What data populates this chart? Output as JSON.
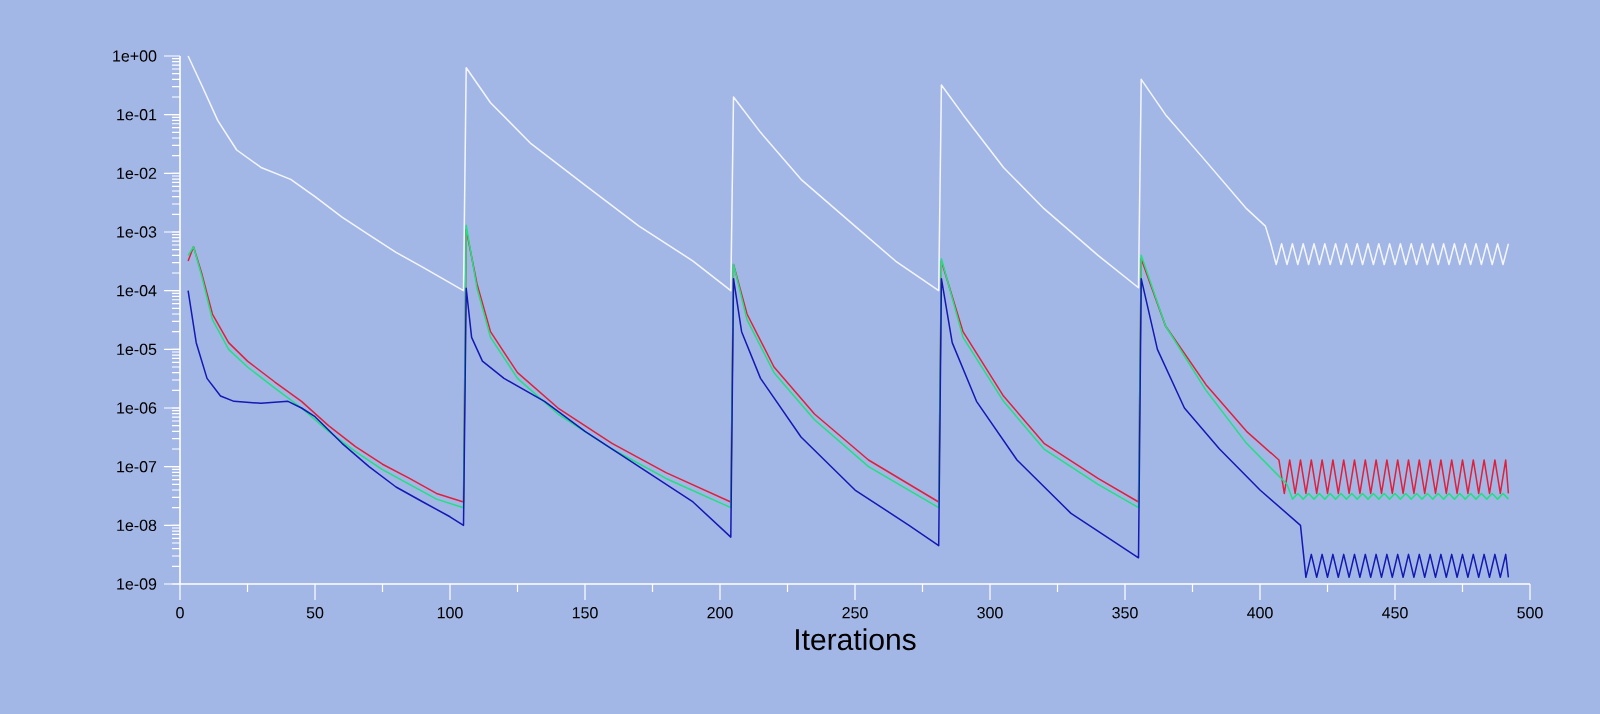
{
  "chart_data": {
    "type": "line",
    "xlabel": "Iterations",
    "log": "y",
    "marker": "none",
    "line_style": "solid",
    "xlim": [
      0,
      500
    ],
    "xticks": [
      0,
      50,
      100,
      150,
      200,
      250,
      300,
      350,
      400,
      450,
      500
    ],
    "ylim": [
      1e-09,
      1
    ],
    "yticks": [
      {
        "value": 1e-09,
        "label": "1e-09"
      },
      {
        "value": 1e-08,
        "label": "1e-08"
      },
      {
        "value": 1e-07,
        "label": "1e-07"
      },
      {
        "value": 1e-06,
        "label": "1e-06"
      },
      {
        "value": 1e-05,
        "label": "1e-05"
      },
      {
        "value": 0.0001,
        "label": "1e-04"
      },
      {
        "value": 0.001,
        "label": "1e-03"
      },
      {
        "value": 0.01,
        "label": "1e-02"
      },
      {
        "value": 0.1,
        "label": "1e-01"
      },
      {
        "value": 1,
        "label": "1e+00"
      }
    ],
    "series": [
      {
        "color": "#f4f6fc",
        "x": [
          3,
          8,
          14,
          21,
          30,
          41,
          50,
          60,
          70,
          80,
          90,
          105,
          106,
          115,
          130,
          150,
          170,
          190,
          204,
          205,
          215,
          230,
          250,
          265,
          281,
          282,
          290,
          305,
          320,
          340,
          355,
          356,
          365,
          380,
          395,
          402,
          404,
          406,
          408,
          410,
          412,
          414,
          416,
          418,
          420,
          422,
          424,
          426,
          428,
          430,
          432,
          434,
          436,
          438,
          440,
          442,
          444,
          446,
          448,
          450,
          452,
          454,
          456,
          458,
          460,
          462,
          464,
          466,
          468,
          470,
          472,
          474,
          476,
          478,
          480,
          482,
          484,
          486,
          488,
          490,
          492
        ],
        "values": [
          1,
          0.32,
          0.079,
          0.025,
          0.0126,
          0.0079,
          0.004,
          0.0018,
          0.00089,
          0.00045,
          0.00025,
          0.0001,
          0.63,
          0.16,
          0.032,
          0.0063,
          0.00126,
          0.00032,
          0.0001,
          0.2,
          0.05,
          0.0079,
          0.00126,
          0.00032,
          0.0001,
          0.32,
          0.1,
          0.0126,
          0.0025,
          0.0004,
          0.000112,
          0.4,
          0.1,
          0.016,
          0.0025,
          0.00126,
          0.00063,
          0.00028,
          0.00063,
          0.00028,
          0.00063,
          0.00028,
          0.00063,
          0.00028,
          0.00063,
          0.00028,
          0.00063,
          0.00028,
          0.00063,
          0.00028,
          0.00063,
          0.00028,
          0.00063,
          0.00028,
          0.00063,
          0.00028,
          0.00063,
          0.00028,
          0.00063,
          0.00028,
          0.00063,
          0.00028,
          0.00063,
          0.00028,
          0.00063,
          0.00028,
          0.00063,
          0.00028,
          0.00063,
          0.00028,
          0.00063,
          0.00028,
          0.00063,
          0.00028,
          0.00063,
          0.00028,
          0.00063,
          0.00028,
          0.00063,
          0.00028,
          0.00063
        ]
      },
      {
        "color": "#e0203a",
        "x": [
          3,
          5,
          8,
          12,
          18,
          25,
          35,
          45,
          55,
          65,
          75,
          85,
          95,
          105,
          106,
          110,
          115,
          125,
          140,
          160,
          180,
          204,
          205,
          210,
          220,
          235,
          255,
          281,
          282,
          290,
          305,
          320,
          340,
          355,
          356,
          365,
          380,
          395,
          407,
          409,
          411,
          413,
          415,
          417,
          419,
          421,
          423,
          425,
          427,
          429,
          431,
          433,
          435,
          437,
          439,
          441,
          443,
          445,
          447,
          449,
          451,
          453,
          455,
          457,
          459,
          461,
          463,
          465,
          467,
          469,
          471,
          473,
          475,
          477,
          479,
          481,
          483,
          485,
          487,
          489,
          491,
          492
        ],
        "values": [
          0.00032,
          0.00056,
          0.0002,
          4e-05,
          1.3e-05,
          6.3e-06,
          2.8e-06,
          1.3e-06,
          5e-07,
          2.2e-07,
          1.1e-07,
          6.3e-08,
          3.5e-08,
          2.5e-08,
          0.0011,
          0.00013,
          2e-05,
          4e-06,
          1e-06,
          2.5e-07,
          7.9e-08,
          2.5e-08,
          0.00028,
          4e-05,
          5e-06,
          7.9e-07,
          1.3e-07,
          2.5e-08,
          0.00032,
          2e-05,
          1.6e-06,
          2.5e-07,
          6.3e-08,
          2.5e-08,
          0.00035,
          2.5e-05,
          2.5e-06,
          4e-07,
          1.3e-07,
          3.5e-08,
          1.3e-07,
          3.5e-08,
          1.3e-07,
          3.5e-08,
          1.3e-07,
          3.5e-08,
          1.3e-07,
          3.5e-08,
          1.3e-07,
          3.5e-08,
          1.3e-07,
          3.5e-08,
          1.3e-07,
          3.5e-08,
          1.3e-07,
          3.5e-08,
          1.3e-07,
          3.5e-08,
          1.3e-07,
          3.5e-08,
          1.3e-07,
          3.5e-08,
          1.3e-07,
          3.5e-08,
          1.3e-07,
          3.5e-08,
          1.3e-07,
          3.5e-08,
          1.3e-07,
          3.5e-08,
          1.3e-07,
          3.5e-08,
          1.3e-07,
          3.5e-08,
          1.3e-07,
          3.5e-08,
          1.3e-07,
          3.5e-08,
          1.3e-07,
          3.5e-08,
          1.3e-07,
          3.5e-08
        ]
      },
      {
        "color": "#20e080",
        "x": [
          3,
          5,
          8,
          12,
          18,
          25,
          35,
          45,
          55,
          65,
          75,
          85,
          95,
          105,
          106,
          110,
          115,
          125,
          140,
          160,
          180,
          204,
          205,
          210,
          220,
          235,
          255,
          281,
          282,
          290,
          305,
          320,
          340,
          355,
          356,
          365,
          380,
          395,
          410,
          412,
          414,
          416,
          418,
          420,
          422,
          424,
          426,
          428,
          430,
          432,
          434,
          436,
          438,
          440,
          442,
          444,
          446,
          448,
          450,
          452,
          454,
          456,
          458,
          460,
          462,
          464,
          466,
          468,
          470,
          472,
          474,
          476,
          478,
          480,
          482,
          484,
          486,
          488,
          490,
          492
        ],
        "values": [
          0.0004,
          0.00056,
          0.00018,
          3.2e-05,
          1e-05,
          5e-06,
          2.2e-06,
          1e-06,
          4e-07,
          1.8e-07,
          8.9e-08,
          5e-08,
          2.8e-08,
          2e-08,
          0.0013,
          0.00011,
          1.6e-05,
          3.2e-06,
          7.9e-07,
          2e-07,
          6.3e-08,
          2e-08,
          0.00028,
          3.2e-05,
          4e-06,
          6.3e-07,
          1e-07,
          2e-08,
          0.00035,
          1.6e-05,
          1.3e-06,
          2e-07,
          5e-08,
          2e-08,
          0.0004,
          2.5e-05,
          2e-06,
          2.5e-07,
          5e-08,
          2.8e-08,
          3.5e-08,
          2.8e-08,
          3.5e-08,
          2.8e-08,
          3.5e-08,
          2.8e-08,
          3.5e-08,
          2.8e-08,
          3.5e-08,
          2.8e-08,
          3.5e-08,
          2.8e-08,
          3.5e-08,
          2.8e-08,
          3.5e-08,
          2.8e-08,
          3.5e-08,
          2.8e-08,
          3.5e-08,
          2.8e-08,
          3.5e-08,
          2.8e-08,
          3.5e-08,
          2.8e-08,
          3.5e-08,
          2.8e-08,
          3.5e-08,
          2.8e-08,
          3.5e-08,
          2.8e-08,
          3.5e-08,
          2.8e-08,
          3.5e-08,
          2.8e-08,
          3.5e-08,
          2.8e-08,
          3.5e-08,
          2.8e-08,
          3.5e-08,
          2.8e-08
        ]
      },
      {
        "color": "#1418b4",
        "x": [
          3,
          6,
          10,
          15,
          20,
          30,
          40,
          45,
          50,
          60,
          70,
          80,
          90,
          100,
          105,
          106,
          108,
          112,
          120,
          135,
          150,
          170,
          190,
          204,
          205,
          208,
          215,
          230,
          250,
          270,
          281,
          282,
          286,
          295,
          310,
          330,
          355,
          356,
          362,
          372,
          385,
          400,
          415,
          417,
          419,
          421,
          423,
          425,
          427,
          429,
          431,
          433,
          435,
          437,
          439,
          441,
          443,
          445,
          447,
          449,
          451,
          453,
          455,
          457,
          459,
          461,
          463,
          465,
          467,
          469,
          471,
          473,
          475,
          477,
          479,
          481,
          483,
          485,
          487,
          489,
          491,
          492
        ],
        "values": [
          0.0001,
          1.3e-05,
          3.2e-06,
          1.6e-06,
          1.3e-06,
          1.2e-06,
          1.3e-06,
          1e-06,
          7.1e-07,
          2.5e-07,
          1e-07,
          4.5e-08,
          2.5e-08,
          1.4e-08,
          1e-08,
          0.00011,
          1.6e-05,
          6.3e-06,
          3.2e-06,
          1.3e-06,
          4e-07,
          1e-07,
          2.5e-08,
          6.3e-09,
          0.00016,
          2e-05,
          3.2e-06,
          3.2e-07,
          4e-08,
          1e-08,
          4.5e-09,
          0.00016,
          1.3e-05,
          1.3e-06,
          1.3e-07,
          1.6e-08,
          2.8e-09,
          0.00016,
          1e-05,
          1e-06,
          2e-07,
          4e-08,
          1e-08,
          1.3e-09,
          3.2e-09,
          1.3e-09,
          3.2e-09,
          1.3e-09,
          3.2e-09,
          1.3e-09,
          3.2e-09,
          1.3e-09,
          3.2e-09,
          1.3e-09,
          3.2e-09,
          1.3e-09,
          3.2e-09,
          1.3e-09,
          3.2e-09,
          1.3e-09,
          3.2e-09,
          1.3e-09,
          3.2e-09,
          1.3e-09,
          3.2e-09,
          1.3e-09,
          3.2e-09,
          1.3e-09,
          3.2e-09,
          1.3e-09,
          3.2e-09,
          1.3e-09,
          3.2e-09,
          1.3e-09,
          3.2e-09,
          1.3e-09,
          3.2e-09,
          1.3e-09,
          3.2e-09,
          1.3e-09,
          3.2e-09,
          1.3e-09
        ]
      }
    ]
  }
}
